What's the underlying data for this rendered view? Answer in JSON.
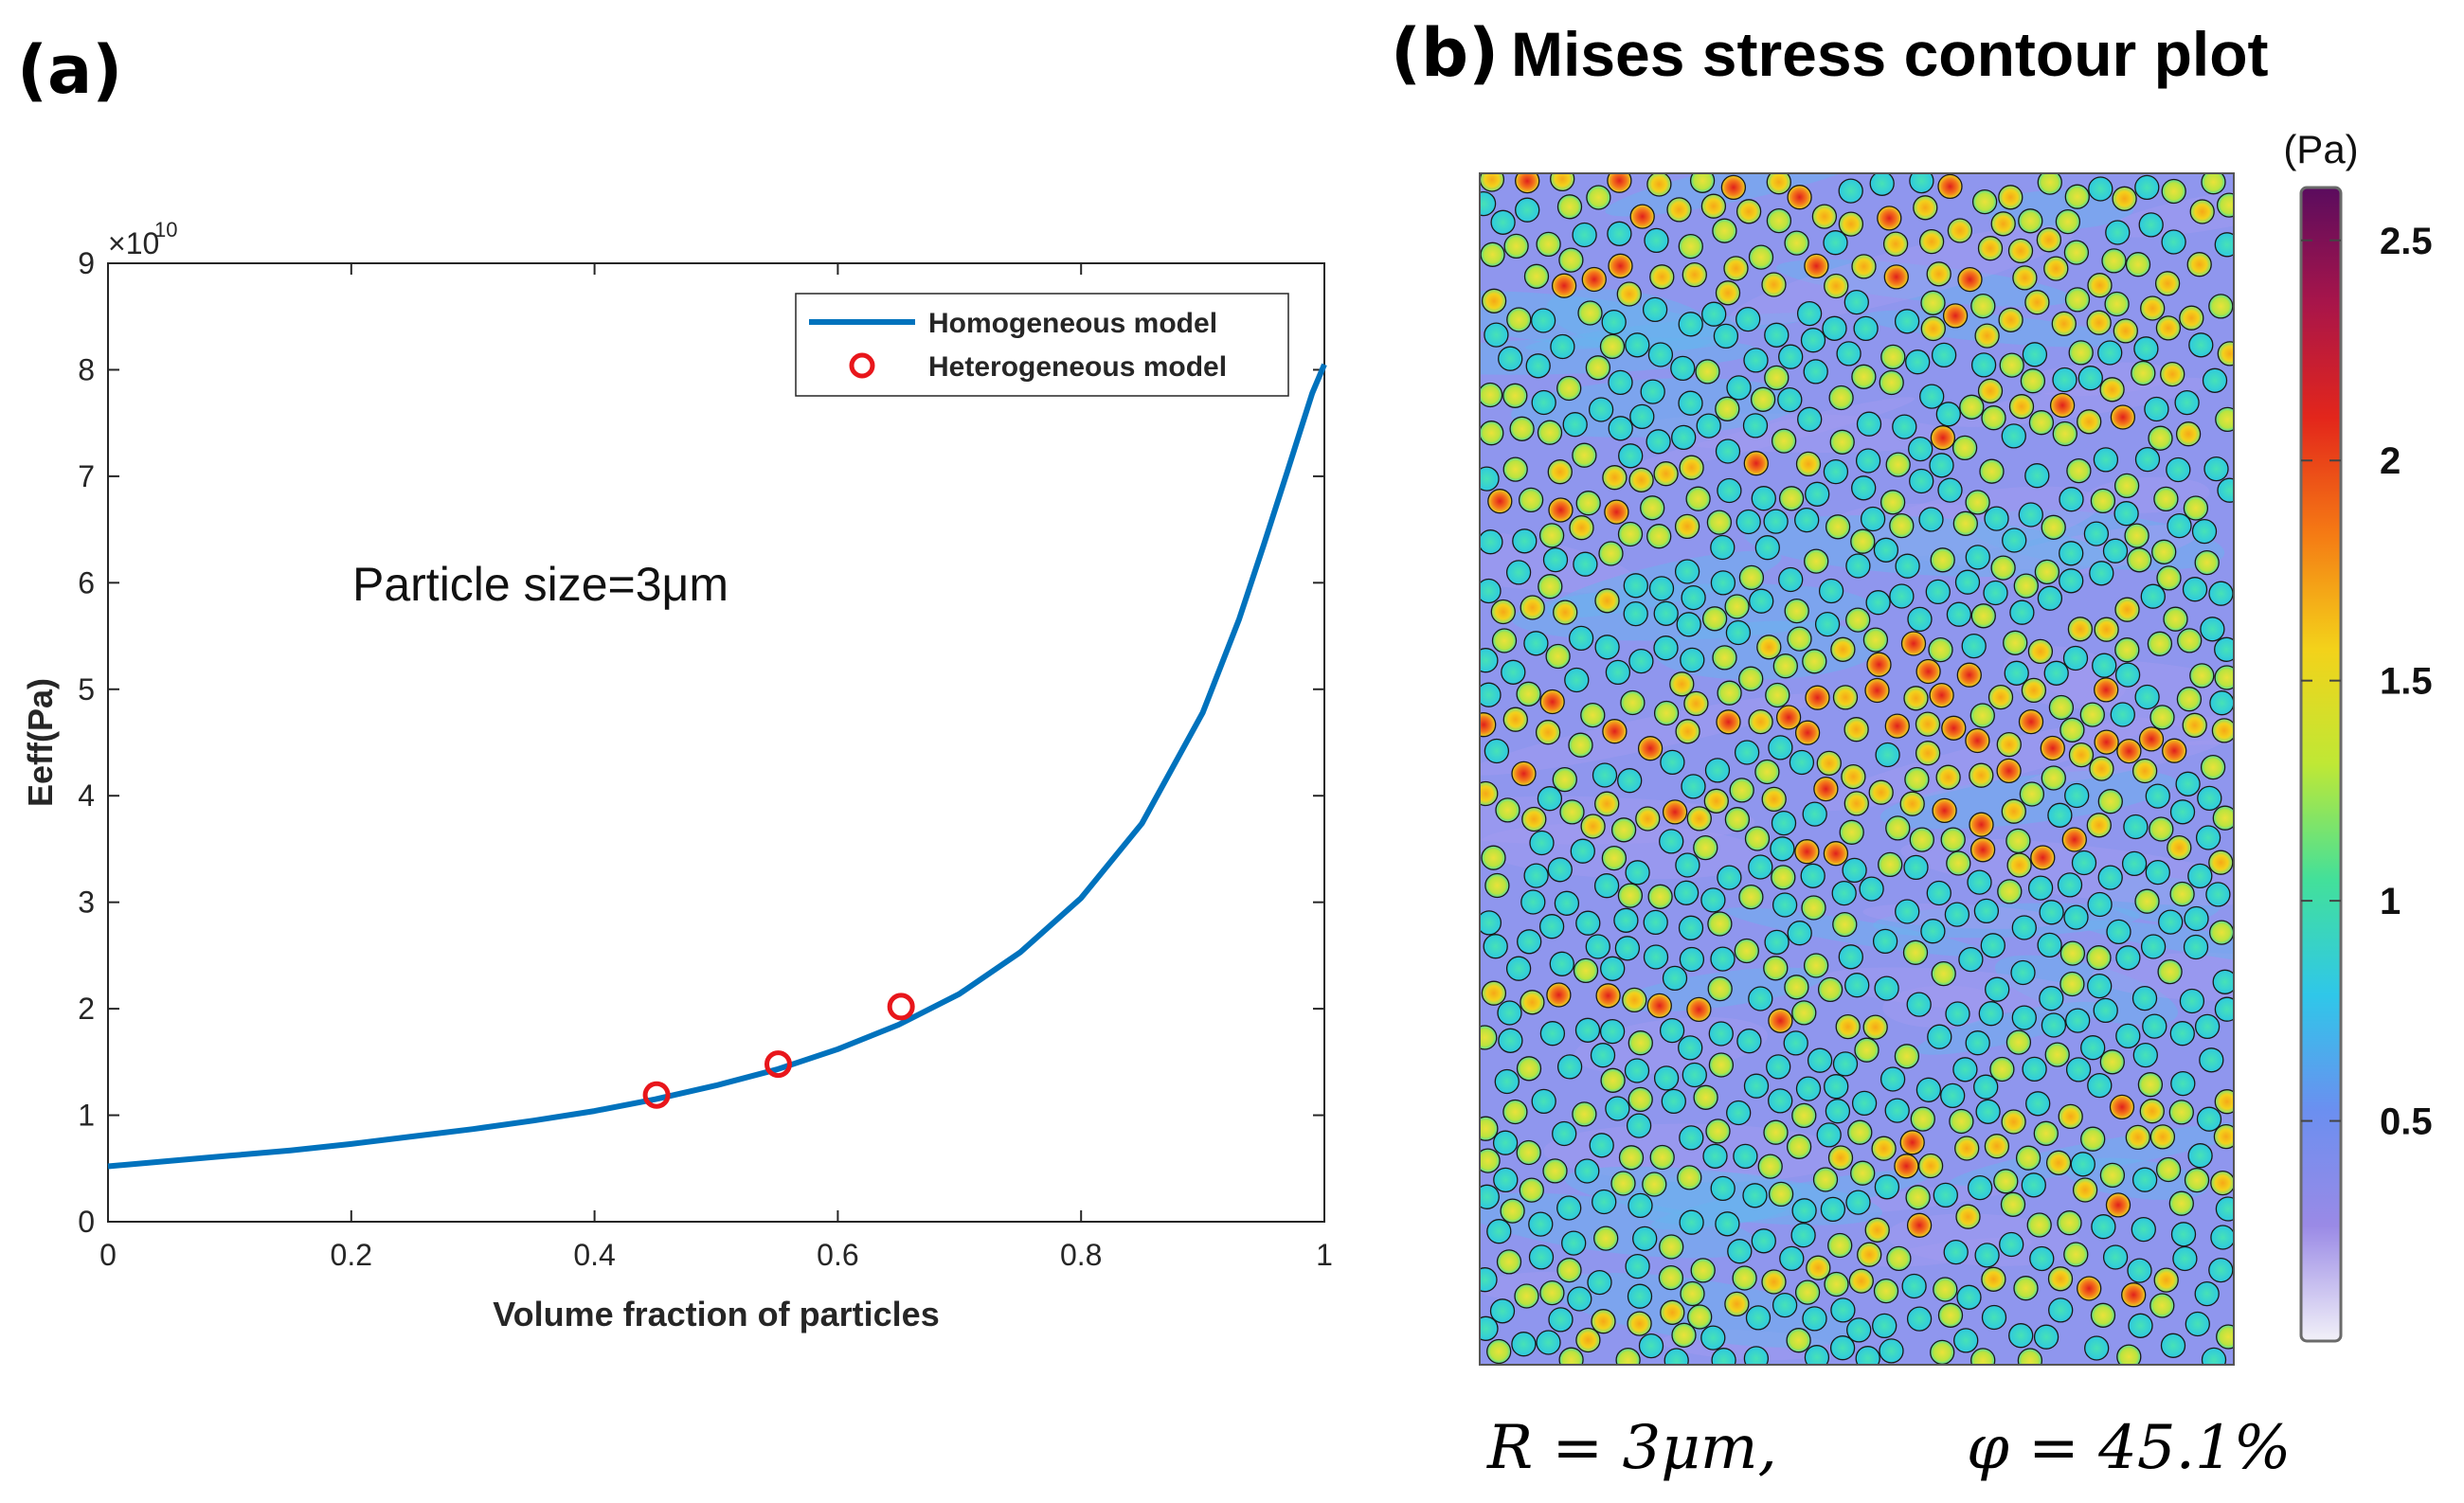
{
  "panel_a": {
    "label": "(a)",
    "annotation": "Particle size=3μm"
  },
  "panel_b": {
    "label": "(b)",
    "title": "Mises stress contour plot",
    "colorbar": {
      "unit": "(Pa)",
      "ticks": [
        "2.5",
        "2",
        "1.5",
        "1",
        "0.5"
      ],
      "tick_values": [
        2.5,
        2.0,
        1.5,
        1.0,
        0.5
      ],
      "range": [
        0.0,
        2.62
      ],
      "colors": [
        "#f2f1f8",
        "#9a8ae6",
        "#6b8ff0",
        "#2fc7e9",
        "#43e09a",
        "#bfe835",
        "#f3d21a",
        "#f57a14",
        "#e3261b",
        "#a8154a",
        "#5a0c5e"
      ]
    },
    "field_colors": {
      "matrix": "#8f96ee",
      "particle": "#3fd9c3",
      "hot_low": "#d6e83a",
      "hot_mid": "#f3b21d",
      "hot_high": "#e8431b",
      "outline": "#1a1a1a"
    },
    "caption_left": "R = 3μm,",
    "caption_right": "φ = 45.1%"
  },
  "chart_data": {
    "type": "line",
    "title": "",
    "xlabel": "Volume fraction of particles",
    "ylabel": "Eeff(Pa)",
    "y_exponent_label": "×10",
    "y_exponent_power": "10",
    "xlim": [
      0,
      1
    ],
    "ylim": [
      0,
      9
    ],
    "x_ticks": [
      0,
      0.2,
      0.4,
      0.6,
      0.8,
      1
    ],
    "x_tick_labels": [
      "0",
      "0.2",
      "0.4",
      "0.6",
      "0.8",
      "1"
    ],
    "y_ticks": [
      0,
      1,
      2,
      3,
      4,
      5,
      6,
      7,
      8,
      9
    ],
    "y_tick_labels": [
      "0",
      "1",
      "2",
      "3",
      "4",
      "5",
      "6",
      "7",
      "8",
      "9"
    ],
    "legend_position": "top-right",
    "series": [
      {
        "name": "Homogeneous model",
        "kind": "line",
        "color": "#0072bd",
        "x": [
          0,
          0.05,
          0.1,
          0.15,
          0.2,
          0.25,
          0.3,
          0.35,
          0.4,
          0.45,
          0.5,
          0.55,
          0.6,
          0.65,
          0.7,
          0.75,
          0.8,
          0.85,
          0.9,
          0.93,
          0.95,
          0.97,
          0.98,
          0.99,
          1.0
        ],
        "y": [
          0.52,
          0.57,
          0.62,
          0.67,
          0.73,
          0.8,
          0.87,
          0.95,
          1.04,
          1.15,
          1.28,
          1.43,
          1.62,
          1.85,
          2.14,
          2.53,
          3.04,
          3.74,
          4.78,
          5.66,
          6.35,
          7.06,
          7.42,
          7.78,
          8.05
        ]
      },
      {
        "name": "Heterogeneous model",
        "kind": "scatter",
        "color": "#e8161b",
        "x": [
          0.451,
          0.551,
          0.652
        ],
        "y": [
          1.19,
          1.48,
          2.02
        ]
      }
    ]
  }
}
